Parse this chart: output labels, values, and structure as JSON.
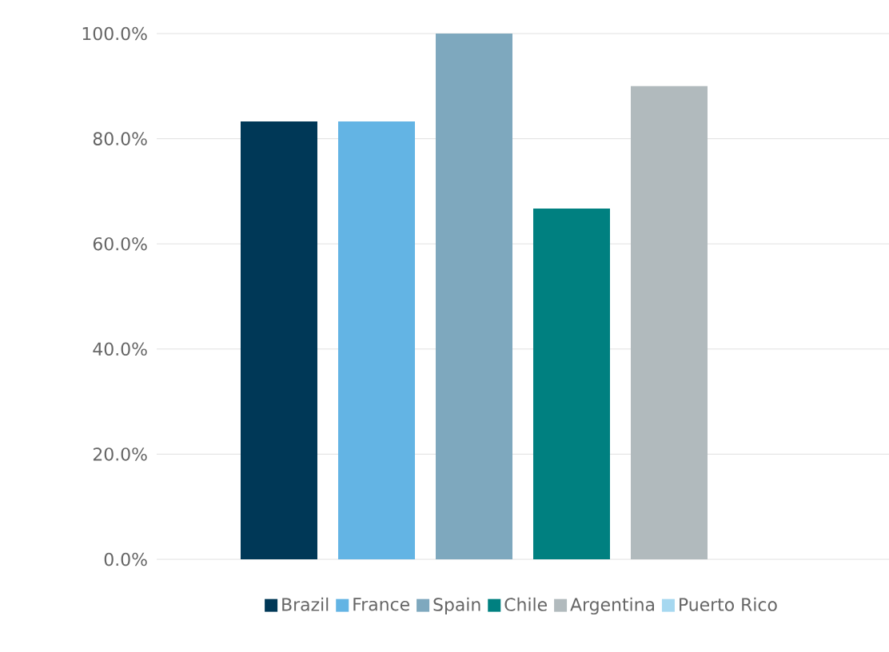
{
  "chart_data": {
    "type": "bar",
    "categories": [
      null
    ],
    "series": [
      {
        "name": "Brazil",
        "color": "#003857",
        "values": [
          83.3
        ]
      },
      {
        "name": "France",
        "color": "#63b4e4",
        "values": [
          83.3
        ]
      },
      {
        "name": "Spain",
        "color": "#7ea8be",
        "values": [
          100.0
        ]
      },
      {
        "name": "Chile",
        "color": "#008080",
        "values": [
          66.7
        ]
      },
      {
        "name": "Argentina",
        "color": "#b1babd",
        "values": [
          90.0
        ]
      },
      {
        "name": "Puerto Rico",
        "color": "#a6d8f0",
        "values": [
          0
        ]
      }
    ],
    "ylim": [
      0,
      100
    ],
    "yticks": [
      {
        "value": 0,
        "label": "0.0%"
      },
      {
        "value": 20,
        "label": "20.0%"
      },
      {
        "value": 40,
        "label": "40.0%"
      },
      {
        "value": 60,
        "label": "60.0%"
      },
      {
        "value": 80,
        "label": "80.0%"
      },
      {
        "value": 100,
        "label": "100.0%"
      }
    ],
    "grid": "y",
    "legend": "bottom"
  }
}
